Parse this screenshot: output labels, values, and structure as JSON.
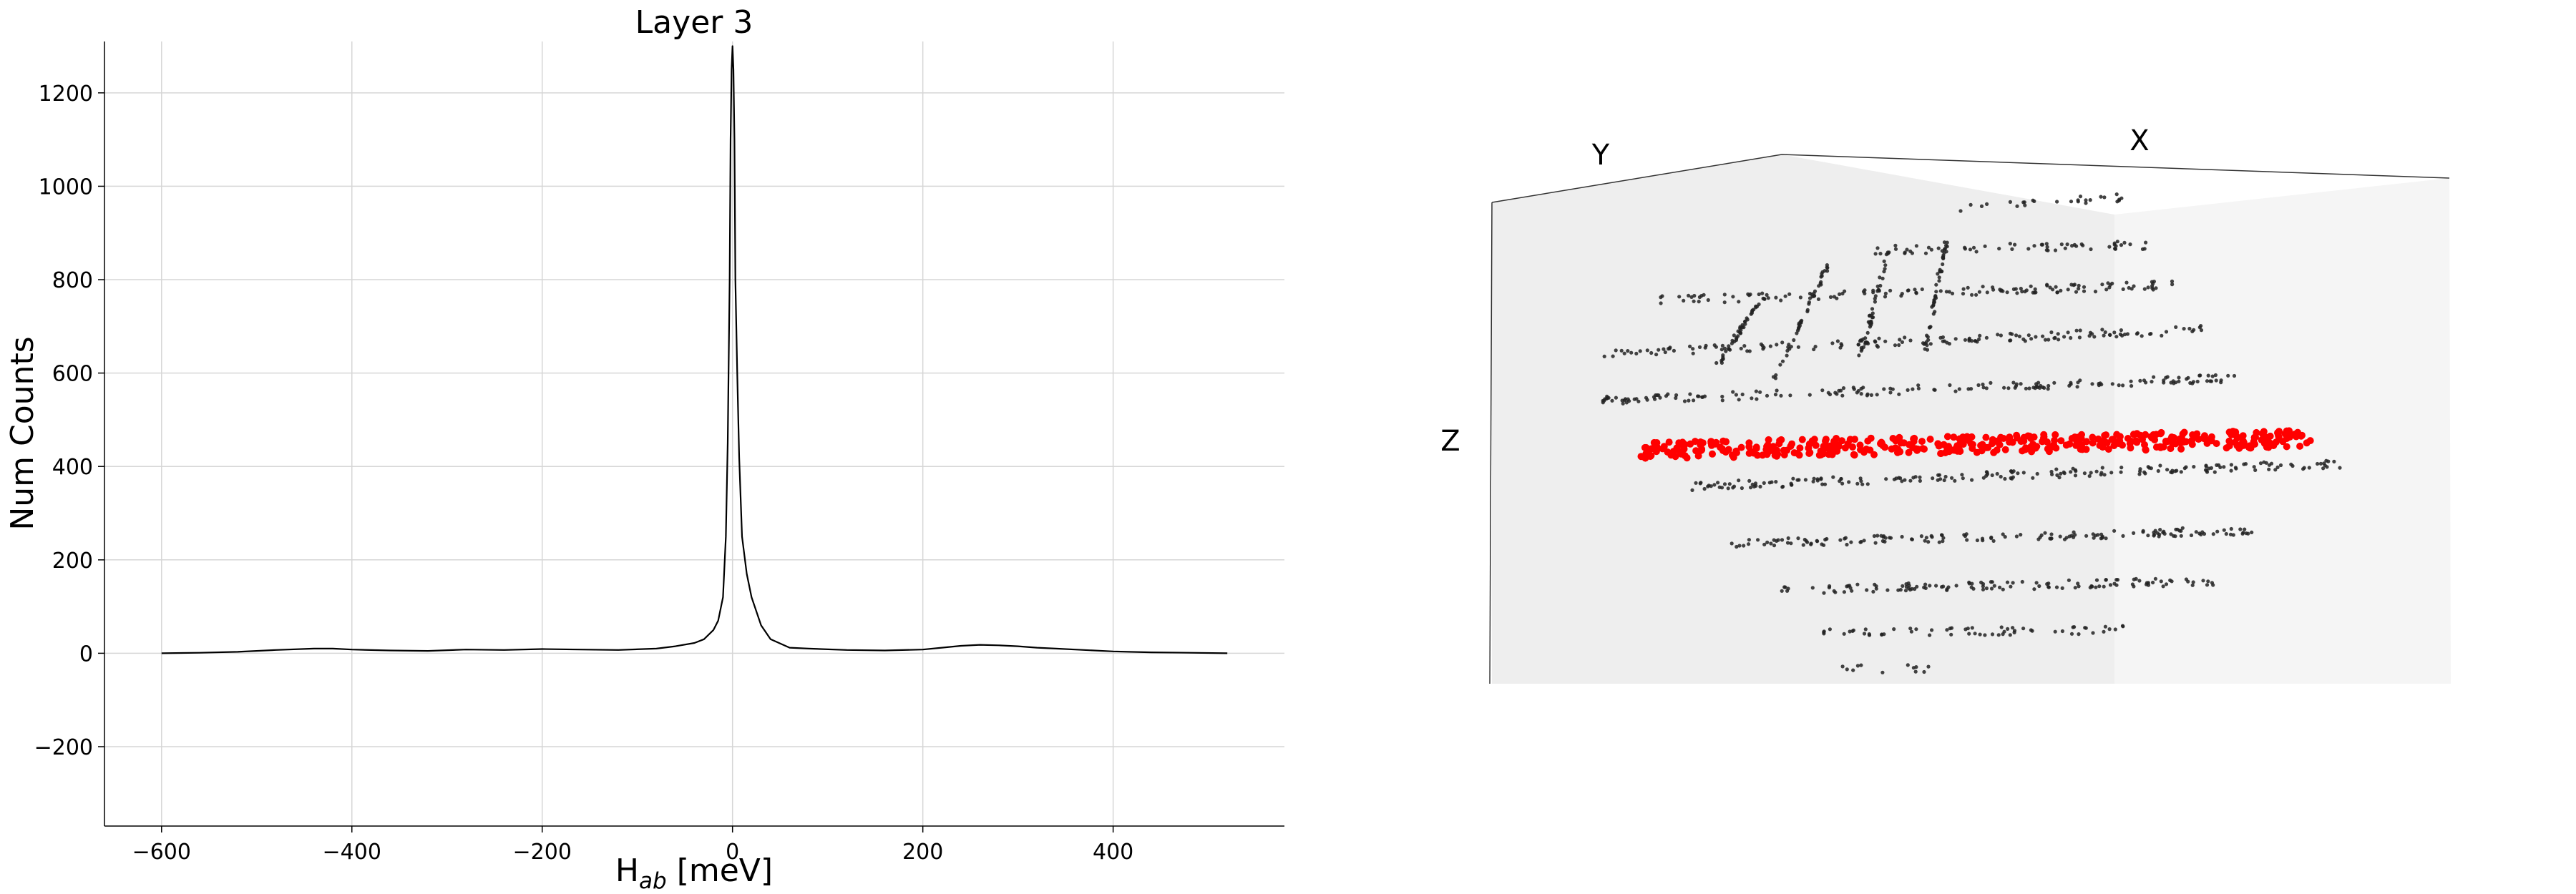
{
  "chart_data": [
    {
      "type": "line",
      "title": "Layer 3",
      "xlabel_main": "H",
      "xlabel_sub": "ab",
      "xlabel_unit": " [meV]",
      "ylabel": "Num Counts",
      "xlim": [
        -660,
        580
      ],
      "ylim": [
        -370,
        1310
      ],
      "xticks": [
        -600,
        -400,
        -200,
        0,
        200,
        400
      ],
      "yticks": [
        -200,
        0,
        200,
        400,
        600,
        800,
        1000,
        1200
      ],
      "grid": true,
      "series": [
        {
          "color": "#000000",
          "x": [
            -600,
            -560,
            -520,
            -480,
            -440,
            -420,
            -400,
            -360,
            -320,
            -280,
            -240,
            -200,
            -160,
            -120,
            -80,
            -60,
            -40,
            -30,
            -20,
            -15,
            -10,
            -7,
            -5,
            -3,
            -2,
            -1,
            0,
            1,
            2,
            3,
            5,
            7,
            10,
            15,
            20,
            30,
            40,
            60,
            80,
            120,
            160,
            200,
            220,
            240,
            260,
            280,
            300,
            320,
            340,
            360,
            400,
            440,
            480,
            520
          ],
          "y": [
            0,
            1,
            3,
            7,
            10,
            10,
            8,
            6,
            5,
            8,
            7,
            9,
            8,
            7,
            10,
            15,
            22,
            30,
            50,
            70,
            120,
            250,
            450,
            800,
            1100,
            1250,
            1300,
            1250,
            1100,
            800,
            600,
            420,
            250,
            170,
            120,
            60,
            30,
            12,
            10,
            7,
            6,
            8,
            12,
            16,
            18,
            17,
            15,
            12,
            10,
            8,
            4,
            2,
            1,
            0
          ]
        }
      ]
    },
    {
      "type": "scatter",
      "axis_labels": {
        "x": "X",
        "y": "Y",
        "z": "Z"
      },
      "series": [
        {
          "color": "#222222",
          "marker": "small-dot"
        },
        {
          "color": "#ff0000",
          "marker": "dot"
        }
      ]
    }
  ]
}
